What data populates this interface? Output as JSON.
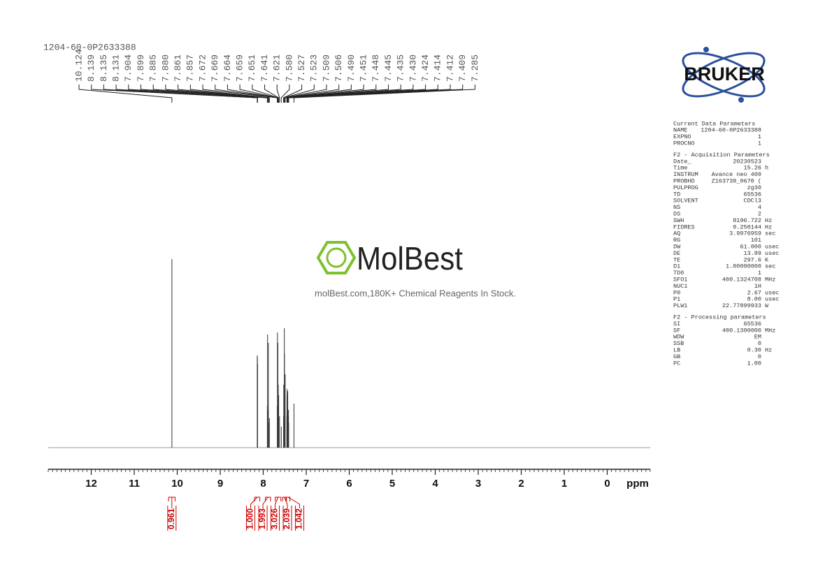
{
  "chart_data": {
    "type": "spectrum",
    "sample_name": "1204-60-0P2633388",
    "x_unit": "ppm",
    "xlim": [
      13,
      -1
    ],
    "xticks": [
      12,
      11,
      10,
      9,
      8,
      7,
      6,
      5,
      4,
      3,
      2,
      1,
      0
    ],
    "ylim": [
      0,
      100
    ],
    "color": "#333333",
    "peak_labels": [
      10.124,
      8.139,
      8.135,
      8.131,
      7.904,
      7.899,
      7.885,
      {
        "value": 7.88,
        "label": "7.880"
      },
      7.861,
      7.857,
      7.672,
      7.669,
      7.664,
      7.659,
      7.651,
      7.641,
      7.621,
      {
        "value": 7.58,
        "label": "7.580"
      },
      7.527,
      7.523,
      7.509,
      7.506,
      {
        "value": 7.49,
        "label": "7.490"
      },
      7.451,
      7.448,
      7.445,
      7.435,
      {
        "value": 7.43,
        "label": "7.430"
      },
      7.424,
      7.414,
      7.412,
      7.409,
      7.285
    ],
    "intensities": [
      90,
      44,
      43,
      40,
      20,
      54,
      18,
      50,
      12,
      14,
      20,
      55,
      35,
      50,
      30,
      25,
      15,
      10,
      15,
      30,
      57,
      45,
      35,
      15,
      25,
      28,
      20,
      27,
      15,
      10,
      18,
      12,
      21
    ],
    "integrals": {
      "color": "#cc0000",
      "values": [
        "0.961",
        "1.000",
        "1.993",
        "3.026",
        "2.039",
        "1.042"
      ],
      "ranges": [
        [
          10.2,
          10.05
        ],
        [
          8.2,
          8.08
        ],
        [
          7.95,
          7.83
        ],
        [
          7.72,
          7.59
        ],
        [
          7.55,
          7.47
        ],
        [
          7.46,
          7.38
        ]
      ]
    }
  },
  "logos": {
    "bruker": "BRUKER",
    "molbest": "MolBest",
    "tagline": "molBest.com,180K+ Chemical Reagents In Stock."
  },
  "parameters": {
    "groups": [
      {
        "title": "Current Data Parameters",
        "rows": [
          [
            "NAME",
            "1204-60-0P2633388"
          ],
          [
            "EXPNO",
            "1"
          ],
          [
            "PROCNO",
            "1"
          ]
        ]
      },
      {
        "title": "F2 - Acquisition Parameters",
        "rows": [
          [
            "Date_",
            "20230523"
          ],
          [
            "Time",
            "15.26",
            "h"
          ],
          [
            "INSTRUM",
            "Avance neo 400"
          ],
          [
            "PROBHD",
            "Z163739_0670 ("
          ],
          [
            "PULPROG",
            "zg30"
          ],
          [
            "TD",
            "65536"
          ],
          [
            "SOLVENT",
            "CDCl3"
          ],
          [
            "NS",
            "4"
          ],
          [
            "DS",
            "2"
          ],
          [
            "SWH",
            "8196.722",
            "Hz"
          ],
          [
            "FIDRES",
            "0.250144",
            "Hz"
          ],
          [
            "AQ",
            "3.9976959",
            "sec"
          ],
          [
            "RG",
            "101"
          ],
          [
            "DW",
            "61.000",
            "usec"
          ],
          [
            "DE",
            "13.89",
            "usec"
          ],
          [
            "TE",
            "297.6",
            "K"
          ],
          [
            "D1",
            "1.00000000",
            "sec"
          ],
          [
            "TD0",
            "1"
          ],
          [
            "SFO1",
            "400.1324708",
            "MHz"
          ],
          [
            "NUC1",
            "1H"
          ],
          [
            "P0",
            "2.67",
            "usec"
          ],
          [
            "P1",
            "8.00",
            "usec"
          ],
          [
            "PLW1",
            "22.77899933",
            "W"
          ]
        ]
      },
      {
        "title": "F2 - Processing parameters",
        "rows": [
          [
            "SI",
            "65536"
          ],
          [
            "SF",
            "400.1300000",
            "MHz"
          ],
          [
            "WDW",
            "EM"
          ],
          [
            "SSB",
            "0"
          ],
          [
            "LB",
            "0.30",
            "Hz"
          ],
          [
            "GB",
            "0"
          ],
          [
            "PC",
            "1.00"
          ]
        ]
      }
    ]
  }
}
